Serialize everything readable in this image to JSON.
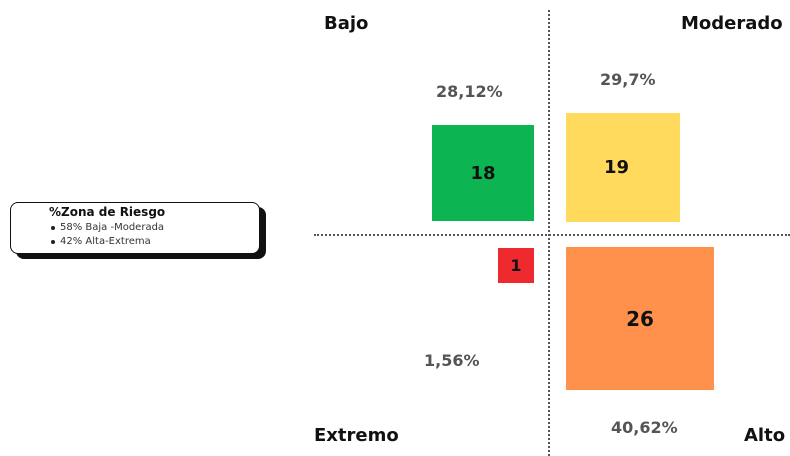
{
  "corners": {
    "top_left": "Bajo",
    "top_right": "Moderado",
    "bottom_left": "Extremo",
    "bottom_right": "Alto"
  },
  "zones": {
    "bajo": {
      "count": "18",
      "percent": "28,12%",
      "color": "#0DB552"
    },
    "moderado": {
      "count": "19",
      "percent": "29,7%",
      "color": "#FFDA5C"
    },
    "extremo": {
      "count": "1",
      "percent": "1,56%",
      "color": "#EE2A2F"
    },
    "alto": {
      "count": "26",
      "percent": "40,62%",
      "color": "#FF914C"
    }
  },
  "legend": {
    "title": "%Zona de Riesgo",
    "items": [
      "58% Baja -Moderada",
      "42% Alta-Extrema"
    ]
  }
}
